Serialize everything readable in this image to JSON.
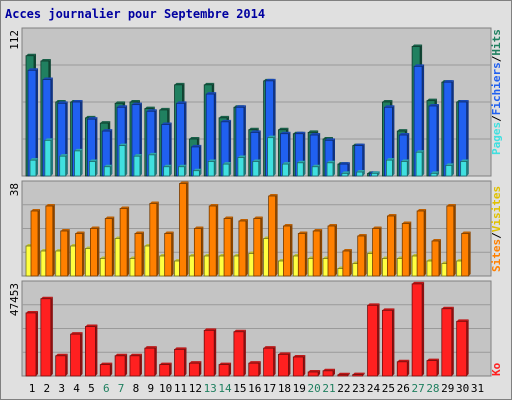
{
  "title": "Acces journalier pour Septembre 2014",
  "chart_data": [
    {
      "type": "bar",
      "categories": [
        "1",
        "2",
        "3",
        "4",
        "5",
        "6",
        "7",
        "8",
        "9",
        "10",
        "11",
        "12",
        "13",
        "14",
        "15",
        "16",
        "17",
        "18",
        "19",
        "20",
        "21",
        "22",
        "23",
        "24",
        "25",
        "26",
        "27",
        "28",
        "29",
        "30",
        "31"
      ],
      "weekend_days": [
        "6",
        "7",
        "13",
        "14",
        "20",
        "21",
        "27",
        "28"
      ],
      "ymax_label": "112",
      "ylim": [
        0,
        112
      ],
      "series": [
        {
          "name": "Pages",
          "color": "#40e0e0",
          "values": [
            12,
            27,
            15,
            19,
            11,
            7,
            23,
            15,
            16,
            7,
            7,
            4,
            11,
            9,
            14,
            11,
            29,
            9,
            10,
            7,
            10,
            2,
            3,
            2,
            12,
            11,
            18,
            2,
            8,
            11,
            0
          ]
        },
        {
          "name": "Fichiers",
          "color": "#2060f0",
          "values": [
            80,
            73,
            55,
            56,
            43,
            34,
            52,
            54,
            49,
            39,
            55,
            22,
            62,
            41,
            52,
            33,
            72,
            32,
            32,
            31,
            27,
            9,
            23,
            2,
            52,
            31,
            83,
            53,
            71,
            56,
            0
          ]
        },
        {
          "name": "Hits",
          "color": "#208060",
          "values": [
            91,
            87,
            56,
            56,
            44,
            40,
            55,
            56,
            51,
            50,
            69,
            28,
            69,
            44,
            52,
            35,
            72,
            35,
            32,
            33,
            28,
            9,
            23,
            2,
            56,
            34,
            98,
            57,
            71,
            56,
            0
          ]
        }
      ]
    },
    {
      "type": "bar",
      "categories": [
        "1",
        "2",
        "3",
        "4",
        "5",
        "6",
        "7",
        "8",
        "9",
        "10",
        "11",
        "12",
        "13",
        "14",
        "15",
        "16",
        "17",
        "18",
        "19",
        "20",
        "21",
        "22",
        "23",
        "24",
        "25",
        "26",
        "27",
        "28",
        "29",
        "30",
        "31"
      ],
      "ymax_label": "38",
      "ylim": [
        0,
        38
      ],
      "series": [
        {
          "name": "Sites",
          "color": "#ffff40",
          "values": [
            12,
            10,
            10,
            12,
            11,
            7,
            15,
            7,
            12,
            8,
            6,
            8,
            8,
            8,
            8,
            9,
            15,
            6,
            8,
            7,
            7,
            3,
            5,
            9,
            7,
            7,
            8,
            6,
            5,
            6,
            0
          ]
        },
        {
          "name": "Visites",
          "color": "#ff8000",
          "values": [
            26,
            28,
            18,
            17,
            19,
            23,
            27,
            17,
            29,
            17,
            37,
            19,
            28,
            23,
            22,
            23,
            32,
            20,
            17,
            18,
            20,
            10,
            16,
            19,
            24,
            21,
            26,
            14,
            28,
            17,
            0
          ]
        }
      ]
    },
    {
      "type": "bar",
      "categories": [
        "1",
        "2",
        "3",
        "4",
        "5",
        "6",
        "7",
        "8",
        "9",
        "10",
        "11",
        "12",
        "13",
        "14",
        "15",
        "16",
        "17",
        "18",
        "19",
        "20",
        "21",
        "22",
        "23",
        "24",
        "25",
        "26",
        "27",
        "28",
        "29",
        "30",
        "31"
      ],
      "ymax_label": "47453",
      "ylim": [
        0,
        47453
      ],
      "series": [
        {
          "name": "Ko",
          "color": "#ff2020",
          "values": [
            31500,
            38600,
            10100,
            20900,
            24700,
            5700,
            10100,
            10100,
            13900,
            5700,
            13300,
            6400,
            22800,
            5700,
            22100,
            6400,
            13900,
            10800,
            9500,
            2000,
            2600,
            600,
            700,
            35300,
            32800,
            7100,
            46000,
            7700,
            33600,
            27300,
            0
          ]
        }
      ]
    }
  ],
  "legend": {
    "top": [
      "Pages",
      "/",
      "Fichiers",
      "/",
      "Hits"
    ],
    "middle": [
      "Sites",
      "/",
      "Visites"
    ],
    "bottom": [
      "Ko"
    ]
  }
}
